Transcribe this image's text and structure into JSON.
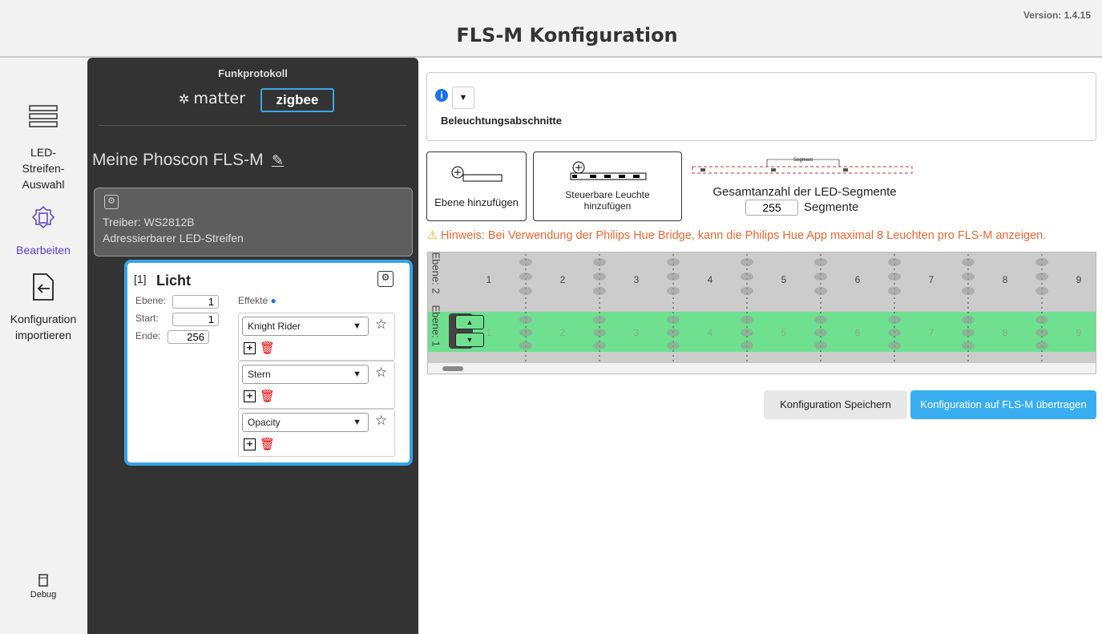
{
  "header": {
    "version": "Version: 1.4.15",
    "title": "FLS-M Konfiguration"
  },
  "sidebar": {
    "strip_select": "LED-Streifen-Auswahl",
    "edit": "Bearbeiten",
    "import": "Konfiguration importieren",
    "debug": "Debug"
  },
  "panel": {
    "protocol_label": "Funkprotokoll",
    "protocols": [
      "matter",
      "zigbee"
    ],
    "device_name": "Meine Phoscon FLS-M",
    "driver": "Treiber: WS2812B",
    "strip_type": "Adressierbarer LED-Streifen",
    "light": {
      "index": "[1]",
      "name": "Licht",
      "fields": [
        {
          "label": "Ebene:",
          "value": "1"
        },
        {
          "label": "Start:",
          "value": "1"
        },
        {
          "label": "Ende:",
          "value": "256"
        }
      ],
      "effects_label": "Effekte",
      "effects": [
        "Knight Rider",
        "Stern",
        "Opacity"
      ]
    }
  },
  "main": {
    "section_title": "Beleuchtungsabschnitte",
    "add_layer": "Ebene hinzufügen",
    "add_light": "Steuerbare Leuchte hinzufügen",
    "segment_label": "Segment",
    "total_label": "Gesamtanzahl der LED-Segmente",
    "total_value": "255",
    "segments_unit": "Segmente",
    "notice": "Hinweis: Bei Verwendung der Philips Hue Bridge, kann die Philips Hue App maximal 8 Leuchten pro FLS-M anzeigen.",
    "layers": [
      "Ebene: 2",
      "Ebene: 1"
    ],
    "segment_numbers": [
      1,
      2,
      3,
      4,
      5,
      6,
      7,
      8,
      9
    ],
    "buttons": [
      "Konfiguration Speichern",
      "Konfiguration auf FLS-M übertragen"
    ]
  }
}
